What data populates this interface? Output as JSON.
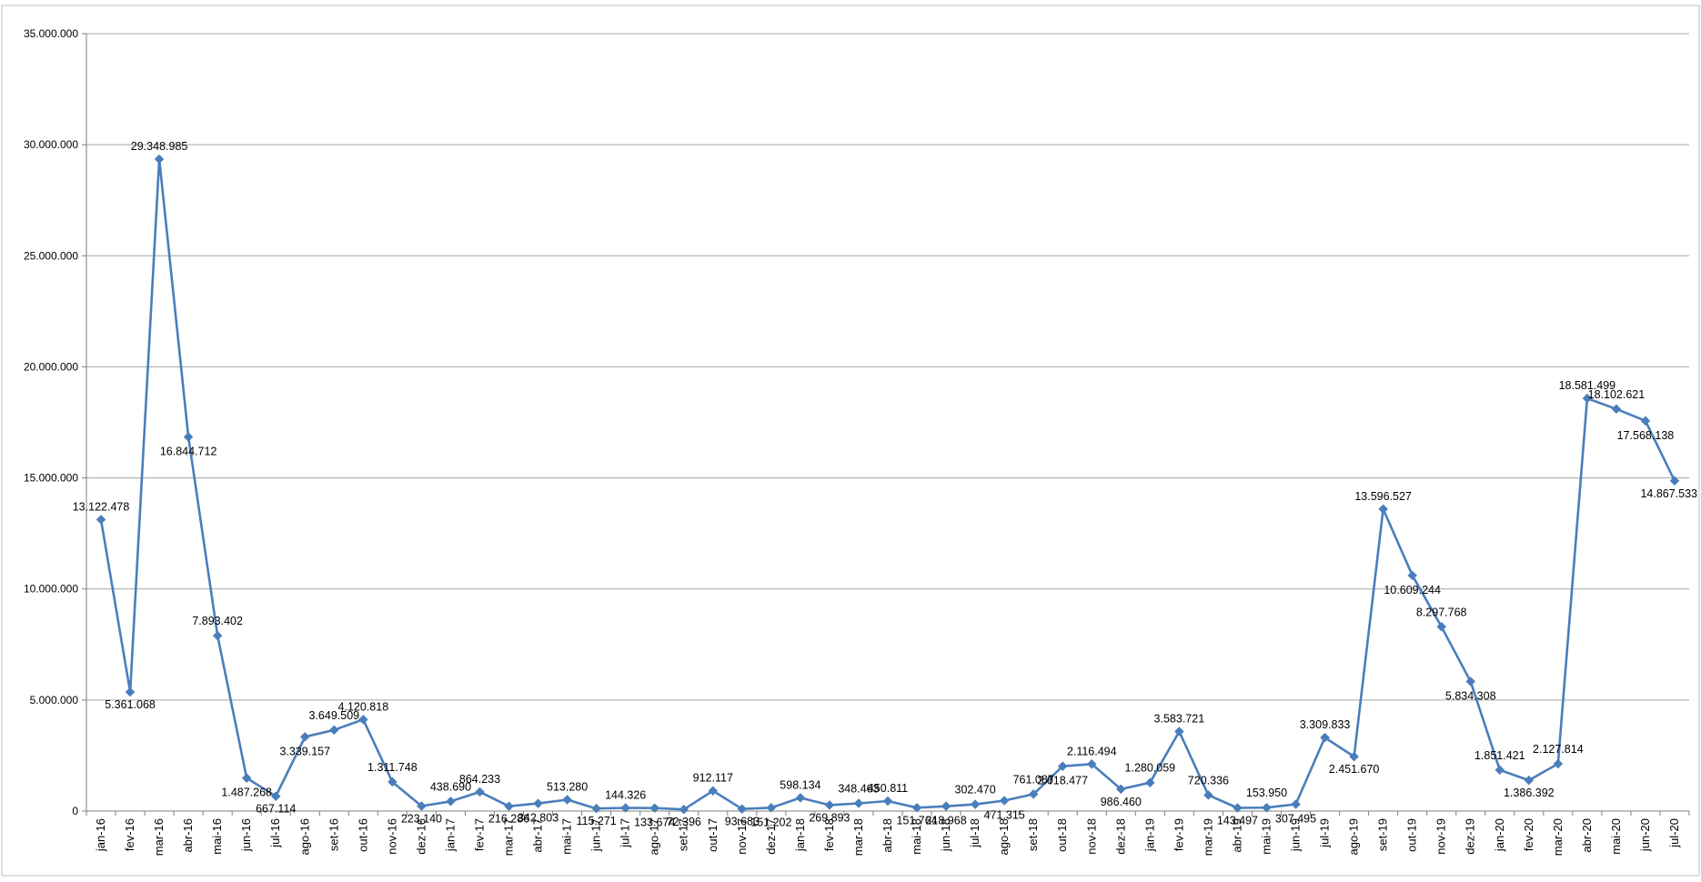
{
  "chart_data": {
    "type": "line",
    "title": "",
    "xlabel": "",
    "ylabel": "",
    "ylim": [
      0,
      35000000
    ],
    "yticks": [
      0,
      5000000,
      10000000,
      15000000,
      20000000,
      25000000,
      30000000,
      35000000
    ],
    "ytick_labels": [
      "0",
      "5.000.000",
      "10.000.000",
      "15.000.000",
      "20.000.000",
      "25.000.000",
      "30.000.000",
      "35.000.000"
    ],
    "grid": "horizontal",
    "legend": "none",
    "series_color": "#4a7ebb",
    "categories": [
      "jan-16",
      "fev-16",
      "mar-16",
      "abr-16",
      "mai-16",
      "jun-16",
      "jul-16",
      "ago-16",
      "set-16",
      "out-16",
      "nov-16",
      "dez-16",
      "jan-17",
      "fev-17",
      "mar-17",
      "abr-17",
      "mai-17",
      "jun-17",
      "jul-17",
      "ago-17",
      "set-17",
      "out-17",
      "nov-17",
      "dez-17",
      "jan-18",
      "fev-18",
      "mar-18",
      "abr-18",
      "mai-18",
      "jun-18",
      "jul-18",
      "ago-18",
      "set-18",
      "out-18",
      "nov-18",
      "dez-18",
      "jan-19",
      "fev-19",
      "mar-19",
      "abr-19",
      "mai-19",
      "jun-19",
      "jul-19",
      "ago-19",
      "set-19",
      "out-19",
      "nov-19",
      "dez-19",
      "jan-20",
      "fev-20",
      "mar-20",
      "abr-20",
      "mai-20",
      "jun-20",
      "jul-20"
    ],
    "values": [
      13122478,
      5361068,
      29348985,
      16844712,
      7893402,
      1487268,
      667114,
      3339157,
      3649509,
      4120818,
      1311748,
      223140,
      438690,
      864233,
      216286,
      342803,
      513280,
      115271,
      144326,
      133674,
      72396,
      912117,
      93683,
      151202,
      598134,
      269893,
      348463,
      450811,
      151764,
      218968,
      302470,
      471315,
      761087,
      2018477,
      2116494,
      986460,
      1280059,
      3583721,
      720336,
      143497,
      153950,
      307495,
      3309833,
      2451670,
      13596527,
      10609244,
      8297768,
      5834308,
      1851421,
      1386392,
      2127814,
      18581499,
      18102621,
      17568138,
      14867533
    ],
    "data_labels": [
      "13.122.478",
      "5.361.068",
      "29.348.985",
      "16.844.712",
      "7.893.402",
      "1.487.268",
      "667.114",
      "3.339.157",
      "3.649.509",
      "4.120.818",
      "1.311.748",
      "223.140",
      "438.690",
      "864.233",
      "216.286",
      "342.803",
      "513.280",
      "115.271",
      "144.326",
      "133.674",
      "72.396",
      "912.117",
      "93.683",
      "151.202",
      "598.134",
      "269.893",
      "348.463",
      "450.811",
      "151.764",
      "218.968",
      "302.470",
      "471.315",
      "761.087",
      "2.018.477",
      "2.116.494",
      "986.460",
      "1.280.059",
      "3.583.721",
      "720.336",
      "143.497",
      "153.950",
      "307.495",
      "3.309.833",
      "2.451.670",
      "13.596.527",
      "10.609.244",
      "8.297.768",
      "5.834.308",
      "1.851.421",
      "1.386.392",
      "2.127.814",
      "18.581.499",
      "18.102.621",
      "17.568.138",
      "14.867.533"
    ]
  }
}
